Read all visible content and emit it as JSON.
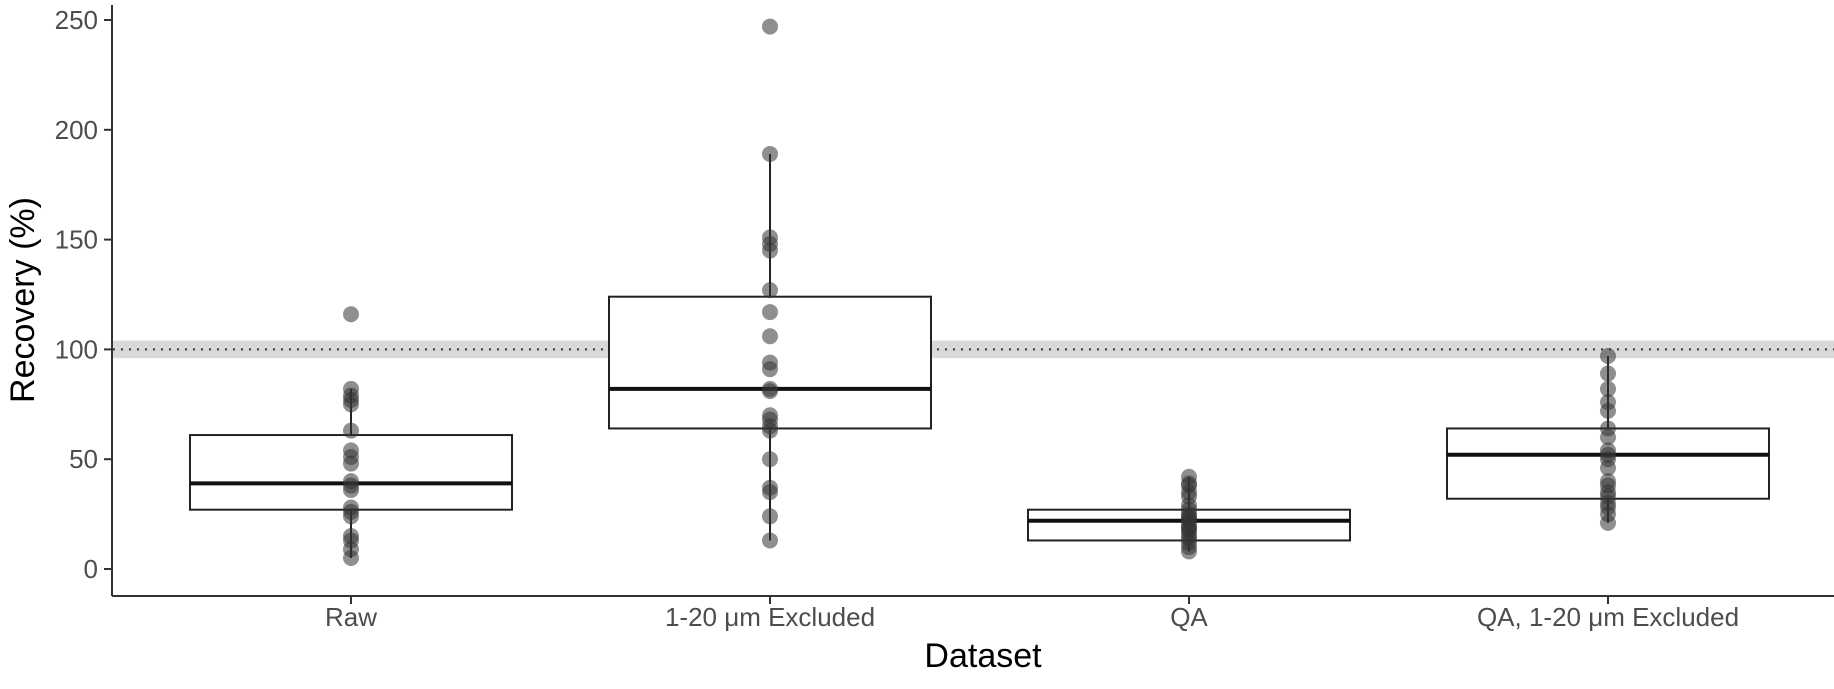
{
  "chart_data": {
    "type": "boxplot",
    "title": "",
    "xlabel": "Dataset",
    "ylabel": "Recovery (%)",
    "ylim": [
      -12,
      258
    ],
    "yticks": [
      0,
      50,
      100,
      150,
      200,
      250
    ],
    "grid": false,
    "reference_line": {
      "y": 100,
      "band": [
        96,
        104
      ],
      "style": "dotted"
    },
    "categories": [
      "Raw",
      "1-20 μm Excluded",
      "QA",
      "QA, 1-20 μm Excluded"
    ],
    "boxes": [
      {
        "q1": 27,
        "median": 39,
        "q3": 61,
        "whisker_low": 5,
        "whisker_high": 82
      },
      {
        "q1": 64,
        "median": 82,
        "q3": 124,
        "whisker_low": 13,
        "whisker_high": 189
      },
      {
        "q1": 13,
        "median": 22,
        "q3": 27,
        "whisker_low": 8,
        "whisker_high": 42
      },
      {
        "q1": 32,
        "median": 52,
        "q3": 64,
        "whisker_low": 21,
        "whisker_high": 97
      }
    ],
    "points": [
      [
        5,
        9,
        13,
        15,
        24,
        26,
        28,
        36,
        38,
        40,
        48,
        51,
        54,
        63,
        75,
        77,
        79,
        82,
        116
      ],
      [
        13,
        24,
        35,
        37,
        50,
        63,
        65,
        68,
        70,
        81,
        82,
        91,
        94,
        106,
        117,
        127,
        145,
        148,
        151,
        189,
        247
      ],
      [
        8,
        10,
        12,
        14,
        15,
        17,
        18,
        19,
        20,
        22,
        23,
        24,
        25,
        27,
        29,
        33,
        35,
        38,
        39,
        42
      ],
      [
        21,
        25,
        28,
        30,
        33,
        35,
        38,
        40,
        46,
        50,
        52,
        54,
        60,
        64,
        72,
        76,
        82,
        89,
        97
      ]
    ]
  }
}
